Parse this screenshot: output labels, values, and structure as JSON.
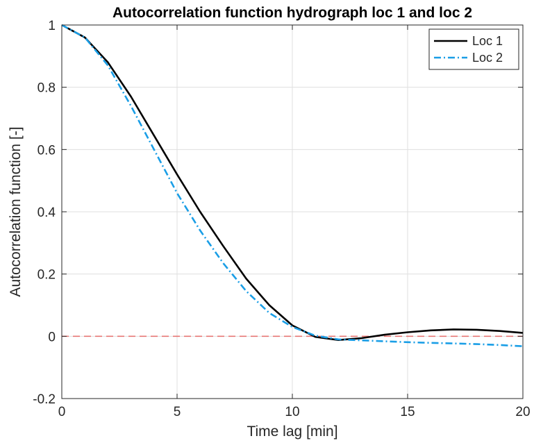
{
  "chart_data": {
    "type": "line",
    "title": "Autocorrelation function hydrograph loc 1 and loc 2",
    "xlabel": "Time lag [min]",
    "ylabel": "Autocorrelation function [-]",
    "xlim": [
      0,
      20
    ],
    "ylim": [
      -0.2,
      1
    ],
    "xticks": [
      0,
      5,
      10,
      15,
      20
    ],
    "yticks": [
      -0.2,
      0,
      0.2,
      0.4,
      0.6,
      0.8,
      1
    ],
    "xtick_labels": [
      "0",
      "5",
      "10",
      "15",
      "20"
    ],
    "ytick_labels": [
      "-0.2",
      "0",
      "0.2",
      "0.4",
      "0.6",
      "0.8",
      "1"
    ],
    "grid": true,
    "legend_position": "top-right",
    "x": [
      0,
      1,
      2,
      3,
      4,
      5,
      6,
      7,
      8,
      9,
      10,
      11,
      12,
      13,
      14,
      15,
      16,
      17,
      18,
      19,
      20
    ],
    "series": [
      {
        "name": "Loc 1",
        "color": "#000000",
        "style": "solid",
        "values": [
          1.0,
          0.96,
          0.88,
          0.77,
          0.645,
          0.52,
          0.4,
          0.29,
          0.185,
          0.1,
          0.035,
          -0.002,
          -0.012,
          -0.006,
          0.005,
          0.013,
          0.019,
          0.022,
          0.021,
          0.017,
          0.011
        ]
      },
      {
        "name": "Loc 2",
        "color": "#1a9ee6",
        "style": "dashdot",
        "values": [
          1.0,
          0.96,
          0.87,
          0.74,
          0.6,
          0.46,
          0.34,
          0.235,
          0.145,
          0.075,
          0.03,
          0.002,
          -0.01,
          -0.013,
          -0.016,
          -0.019,
          -0.021,
          -0.023,
          -0.025,
          -0.028,
          -0.032
        ]
      }
    ],
    "reference_line": {
      "y": 0,
      "color": "#e8625f",
      "style": "dashed"
    }
  }
}
